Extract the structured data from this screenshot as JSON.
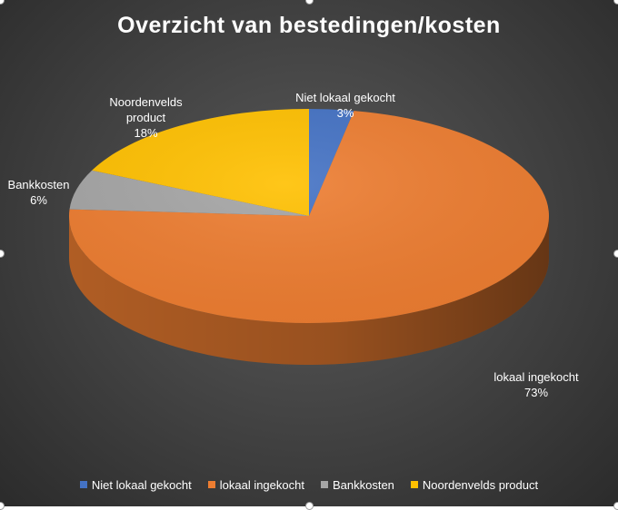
{
  "chart_data": {
    "type": "pie",
    "title": "Overzicht van bestedingen/kosten",
    "categories": [
      "Niet lokaal gekocht",
      "lokaal ingekocht",
      "Bankkosten",
      "Noordenvelds product"
    ],
    "values": [
      3,
      73,
      6,
      18
    ],
    "colors": [
      "#4472c4",
      "#ed7d31",
      "#a5a5a5",
      "#ffc000"
    ],
    "data_labels": [
      {
        "name": "Niet lokaal gekocht",
        "value": "3%"
      },
      {
        "name": "lokaal ingekocht",
        "value": "73%"
      },
      {
        "name": "Bankkosten",
        "value": "6%"
      },
      {
        "name": "Noordenvelds product",
        "value": "18%"
      }
    ],
    "style": "3d",
    "legend_position": "bottom"
  }
}
